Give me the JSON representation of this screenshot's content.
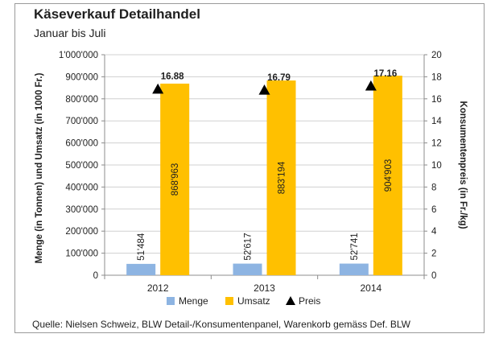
{
  "header": {
    "title": "Käseverkauf Detailhandel",
    "subtitle": "Januar bis Juli"
  },
  "footer": {
    "source": "Quelle: Nielsen Schweiz, BLW Detail-/Konsumentenpanel, Warenkorb gemäss Def. BLW"
  },
  "colors": {
    "menge": "#8db4e2",
    "umsatz": "#ffc000",
    "preis": "#000000",
    "gridline": "#d0d0d0",
    "axis": "#8c8c8c"
  },
  "chart_data": {
    "type": "bar",
    "categories": [
      "2012",
      "2013",
      "2014"
    ],
    "series": [
      {
        "name": "Menge",
        "axis": "left",
        "values": [
          51484,
          52617,
          52741
        ],
        "labels": [
          "51'484",
          "52'617",
          "52'741"
        ]
      },
      {
        "name": "Umsatz",
        "axis": "left",
        "values": [
          868963,
          883194,
          904903
        ],
        "labels": [
          "868'963",
          "883'194",
          "904'903"
        ]
      },
      {
        "name": "Preis",
        "axis": "right",
        "marker": "triangle",
        "values": [
          16.88,
          16.79,
          17.16
        ],
        "labels": [
          "16.88",
          "16.79",
          "17.16"
        ]
      }
    ],
    "y_left": {
      "label": "Menge (in Tonnen) und Umsatz (in 1000 Fr.)",
      "ylim": [
        0,
        1000000
      ],
      "ticks": [
        0,
        100000,
        200000,
        300000,
        400000,
        500000,
        600000,
        700000,
        800000,
        900000,
        1000000
      ],
      "tick_labels": [
        "0",
        "100'000",
        "200'000",
        "300'000",
        "400'000",
        "500'000",
        "600'000",
        "700'000",
        "800'000",
        "900'000",
        "1'000'000"
      ]
    },
    "y_right": {
      "label": "Konsumentenpreis (in Fr./kg)",
      "ylim": [
        0,
        20
      ],
      "ticks": [
        0,
        2,
        4,
        6,
        8,
        10,
        12,
        14,
        16,
        18,
        20
      ],
      "tick_labels": [
        "0",
        "2",
        "4",
        "6",
        "8",
        "10",
        "12",
        "14",
        "16",
        "18",
        "20"
      ]
    },
    "grid": true,
    "legend": "bottom",
    "legend_entries": [
      "Menge",
      "Umsatz",
      "Preis"
    ]
  }
}
